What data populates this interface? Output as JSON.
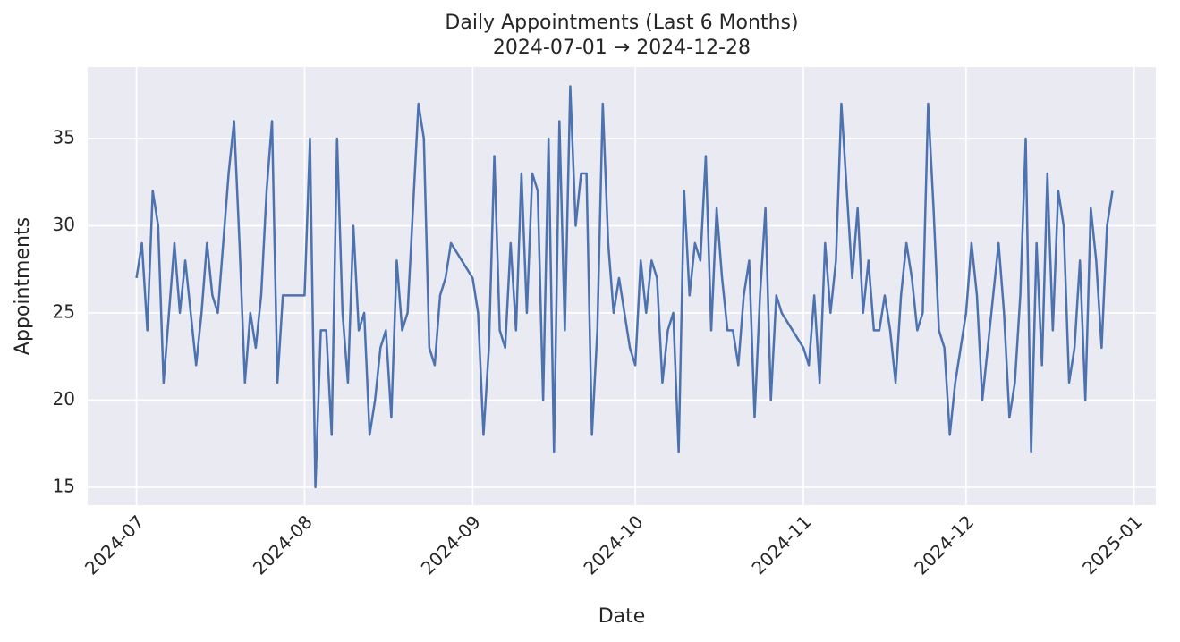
{
  "chart_data": {
    "type": "line",
    "title": "Daily Appointments (Last 6 Months)",
    "subtitle": "2024-07-01 → 2024-12-28",
    "x_label": "Date",
    "y_label": "Appointments",
    "x": [
      "2024-07-01",
      "2024-07-02",
      "2024-07-03",
      "2024-07-04",
      "2024-07-05",
      "2024-07-06",
      "2024-07-07",
      "2024-07-08",
      "2024-07-09",
      "2024-07-10",
      "2024-07-11",
      "2024-07-12",
      "2024-07-13",
      "2024-07-14",
      "2024-07-15",
      "2024-07-16",
      "2024-07-17",
      "2024-07-18",
      "2024-07-19",
      "2024-07-20",
      "2024-07-21",
      "2024-07-22",
      "2024-07-23",
      "2024-07-24",
      "2024-07-25",
      "2024-07-26",
      "2024-07-27",
      "2024-07-28",
      "2024-07-29",
      "2024-07-30",
      "2024-07-31",
      "2024-08-01",
      "2024-08-02",
      "2024-08-03",
      "2024-08-04",
      "2024-08-05",
      "2024-08-06",
      "2024-08-07",
      "2024-08-08",
      "2024-08-09",
      "2024-08-10",
      "2024-08-11",
      "2024-08-12",
      "2024-08-13",
      "2024-08-14",
      "2024-08-15",
      "2024-08-16",
      "2024-08-17",
      "2024-08-18",
      "2024-08-19",
      "2024-08-20",
      "2024-08-21",
      "2024-08-22",
      "2024-08-23",
      "2024-08-24",
      "2024-08-25",
      "2024-08-26",
      "2024-08-27",
      "2024-08-28",
      "2024-09-01",
      "2024-09-02",
      "2024-09-03",
      "2024-09-04",
      "2024-09-05",
      "2024-09-06",
      "2024-09-07",
      "2024-09-08",
      "2024-09-09",
      "2024-09-10",
      "2024-09-11",
      "2024-09-12",
      "2024-09-13",
      "2024-09-14",
      "2024-09-15",
      "2024-09-16",
      "2024-09-17",
      "2024-09-18",
      "2024-09-19",
      "2024-09-20",
      "2024-09-21",
      "2024-09-22",
      "2024-09-23",
      "2024-09-24",
      "2024-09-25",
      "2024-09-26",
      "2024-09-27",
      "2024-09-28",
      "2024-09-29",
      "2024-09-30",
      "2024-10-01",
      "2024-10-02",
      "2024-10-03",
      "2024-10-04",
      "2024-10-05",
      "2024-10-06",
      "2024-10-07",
      "2024-10-08",
      "2024-10-09",
      "2024-10-10",
      "2024-10-11",
      "2024-10-12",
      "2024-10-13",
      "2024-10-14",
      "2024-10-15",
      "2024-10-16",
      "2024-10-17",
      "2024-10-18",
      "2024-10-19",
      "2024-10-20",
      "2024-10-21",
      "2024-10-22",
      "2024-10-23",
      "2024-10-24",
      "2024-10-25",
      "2024-10-26",
      "2024-10-27",
      "2024-10-28",
      "2024-11-01",
      "2024-11-02",
      "2024-11-03",
      "2024-11-04",
      "2024-11-05",
      "2024-11-06",
      "2024-11-07",
      "2024-11-08",
      "2024-11-09",
      "2024-11-10",
      "2024-11-11",
      "2024-11-12",
      "2024-11-13",
      "2024-11-14",
      "2024-11-15",
      "2024-11-16",
      "2024-11-17",
      "2024-11-18",
      "2024-11-19",
      "2024-11-20",
      "2024-11-21",
      "2024-11-22",
      "2024-11-23",
      "2024-11-24",
      "2024-11-25",
      "2024-11-26",
      "2024-11-27",
      "2024-11-28",
      "2024-11-29",
      "2024-11-30",
      "2024-12-01",
      "2024-12-02",
      "2024-12-03",
      "2024-12-04",
      "2024-12-05",
      "2024-12-06",
      "2024-12-07",
      "2024-12-08",
      "2024-12-09",
      "2024-12-10",
      "2024-12-11",
      "2024-12-12",
      "2024-12-13",
      "2024-12-14",
      "2024-12-15",
      "2024-12-16",
      "2024-12-17",
      "2024-12-18",
      "2024-12-19",
      "2024-12-20",
      "2024-12-21",
      "2024-12-22",
      "2024-12-23",
      "2024-12-24",
      "2024-12-25",
      "2024-12-26",
      "2024-12-27",
      "2024-12-28"
    ],
    "series": [
      {
        "name": "Appointments",
        "color": "#4c72b0",
        "values": [
          27,
          29,
          24,
          32,
          30,
          21,
          25,
          29,
          25,
          28,
          25,
          22,
          25,
          29,
          26,
          25,
          29,
          33,
          36,
          29,
          21,
          25,
          23,
          26,
          32,
          36,
          21,
          26,
          26,
          26,
          26,
          26,
          35,
          15,
          24,
          24,
          18,
          35,
          25,
          21,
          30,
          24,
          25,
          18,
          20,
          23,
          24,
          19,
          28,
          24,
          25,
          31,
          37,
          35,
          23,
          22,
          26,
          27,
          29,
          27,
          25,
          18,
          23,
          34,
          24,
          23,
          29,
          24,
          33,
          25,
          33,
          32,
          20,
          35,
          17,
          36,
          24,
          38,
          30,
          33,
          33,
          18,
          24,
          37,
          29,
          25,
          27,
          25,
          23,
          22,
          28,
          25,
          28,
          27,
          21,
          24,
          25,
          17,
          32,
          26,
          29,
          28,
          34,
          24,
          31,
          27,
          24,
          24,
          22,
          26,
          28,
          19,
          26,
          31,
          20,
          26,
          25,
          23,
          22,
          26,
          21,
          29,
          25,
          28,
          37,
          32,
          27,
          31,
          25,
          28,
          24,
          24,
          26,
          24,
          21,
          26,
          29,
          27,
          24,
          25,
          37,
          31,
          24,
          23,
          18,
          21,
          23,
          25,
          29,
          26,
          20,
          23,
          26,
          29,
          25,
          19,
          21,
          26,
          35,
          17,
          29,
          22,
          33,
          24,
          32,
          30,
          21,
          23,
          28,
          20,
          31,
          28,
          23,
          30,
          32
        ]
      }
    ],
    "xlim": [
      "2024-06-22",
      "2025-01-05"
    ],
    "xticks": [
      {
        "value": "2024-07-01",
        "label": "2024-07"
      },
      {
        "value": "2024-08-01",
        "label": "2024-08"
      },
      {
        "value": "2024-09-01",
        "label": "2024-09"
      },
      {
        "value": "2024-10-01",
        "label": "2024-10"
      },
      {
        "value": "2024-11-01",
        "label": "2024-11"
      },
      {
        "value": "2024-12-01",
        "label": "2024-12"
      },
      {
        "value": "2025-01-01",
        "label": "2025-01"
      }
    ],
    "ylim": [
      13.97,
      39.1
    ],
    "yticks": [
      15,
      20,
      25,
      30,
      35
    ],
    "grid": true
  }
}
